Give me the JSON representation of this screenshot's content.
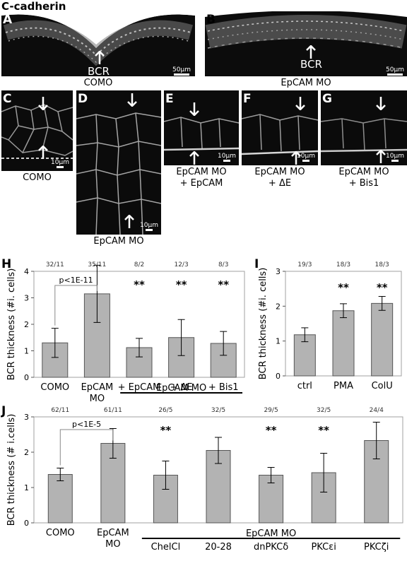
{
  "figure": {
    "title": "C-cadherin",
    "panels": {
      "A": {
        "letter": "A",
        "caption": "COMO",
        "arrow_label": "BCR",
        "scale": "50µm"
      },
      "B": {
        "letter": "B",
        "caption": "EpCAM MO",
        "arrow_label": "BCR",
        "scale": "50µm"
      },
      "C": {
        "letter": "C",
        "caption": "COMO",
        "scale": "10µm"
      },
      "D": {
        "letter": "D",
        "caption": "EpCAM MO",
        "scale": "10µm"
      },
      "E": {
        "letter": "E",
        "caption_line1": "EpCAM MO",
        "caption_line2": "+ EpCAM",
        "scale": "10µm"
      },
      "F": {
        "letter": "F",
        "caption_line1": "EpCAM MO",
        "caption_line2": "+ ΔE",
        "scale": "10µm"
      },
      "G": {
        "letter": "G",
        "caption_line1": "EpCAM MO",
        "caption_line2": "+ Bis1",
        "scale": "10µm"
      }
    }
  },
  "chart_data": [
    {
      "panel": "H",
      "type": "bar",
      "ylabel": "BCR thickness (#i. cells)",
      "ylim": [
        0,
        4
      ],
      "yticks": [
        "0",
        "1",
        "2",
        "3",
        "4"
      ],
      "categories": [
        "COMO",
        "EpCAM MO",
        "+ EpCAM",
        "+ ΔE",
        "+ Bis1"
      ],
      "cat_line1": [
        "COMO",
        "EpCAM",
        "+ EpCAM",
        "+ ΔE",
        "+ Bis1"
      ],
      "cat_line2": [
        "",
        "MO",
        "",
        "",
        ""
      ],
      "values": [
        1.3,
        3.15,
        1.12,
        1.5,
        1.28
      ],
      "errors": [
        0.55,
        1.08,
        0.35,
        0.68,
        0.45
      ],
      "n_labels": [
        "32/11",
        "35/11",
        "8/2",
        "12/3",
        "8/3"
      ],
      "significance": [
        "",
        "",
        "**",
        "**",
        "**"
      ],
      "comparison": {
        "from": 0,
        "to": 1,
        "label": "p<1E-11"
      },
      "group": {
        "label": "EpCAM MO",
        "from": 2,
        "to": 4
      }
    },
    {
      "panel": "I",
      "type": "bar",
      "ylabel": "BCR thickness (#i. cells)",
      "ylim": [
        0,
        3
      ],
      "yticks": [
        "0",
        "1",
        "2",
        "3"
      ],
      "categories": [
        "ctrl",
        "PMA",
        "ColU"
      ],
      "cat_line1": [
        "ctrl",
        "PMA",
        "ColU"
      ],
      "cat_line2": [
        "",
        "",
        ""
      ],
      "values": [
        1.18,
        1.87,
        2.08
      ],
      "errors": [
        0.2,
        0.2,
        0.2
      ],
      "n_labels": [
        "19/3",
        "18/3",
        "18/3"
      ],
      "significance": [
        "",
        "**",
        "**"
      ]
    },
    {
      "panel": "J",
      "type": "bar",
      "ylabel": "BCR thickness (# i.cells)",
      "ylim": [
        0,
        3
      ],
      "yticks": [
        "0",
        "1",
        "2",
        "3"
      ],
      "categories": [
        "COMO",
        "EpCAM MO",
        "ChelCl",
        "20-28",
        "dnPKCδ",
        "PKCεi",
        "PKCζi"
      ],
      "cat_line1": [
        "COMO",
        "EpCAM",
        "ChelCl",
        "20-28",
        "dnPKCδ",
        "PKCεi",
        "PKCζi"
      ],
      "cat_line2": [
        "",
        "MO",
        "",
        "",
        "",
        "",
        ""
      ],
      "values": [
        1.37,
        2.25,
        1.35,
        2.05,
        1.35,
        1.42,
        2.33
      ],
      "errors": [
        0.18,
        0.42,
        0.4,
        0.37,
        0.22,
        0.55,
        0.52
      ],
      "n_labels": [
        "62/11",
        "61/11",
        "26/5",
        "32/5",
        "29/5",
        "32/5",
        "24/4"
      ],
      "significance": [
        "",
        "",
        "**",
        "",
        "**",
        "**",
        ""
      ],
      "comparison": {
        "from": 0,
        "to": 1,
        "label": "p<1E-5"
      },
      "group": {
        "label": "EpCAM MO",
        "from": 2,
        "to": 6
      }
    }
  ],
  "chart_letters": {
    "H": "H",
    "I": "I",
    "J": "J"
  }
}
